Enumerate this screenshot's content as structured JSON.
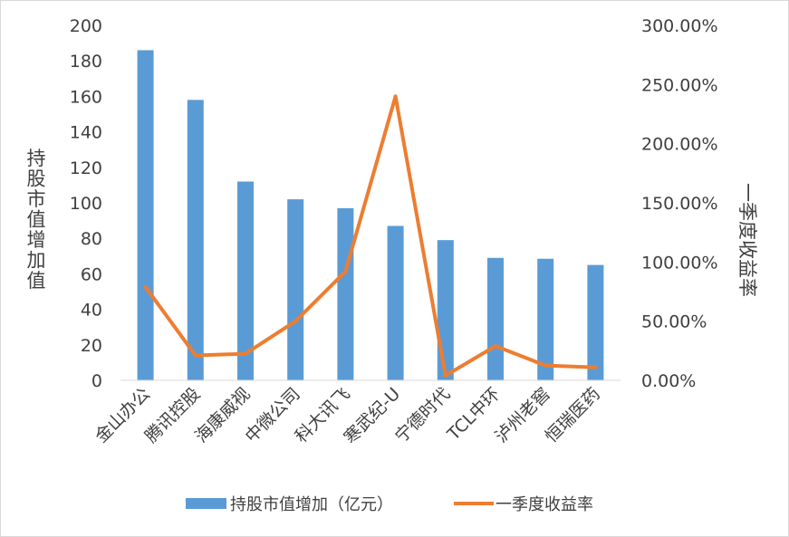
{
  "chart_data": {
    "type": "bar",
    "categories": [
      "金山办公",
      "腾讯控股",
      "海康威视",
      "中微公司",
      "科大讯飞",
      "寒武纪-U",
      "宁德时代",
      "TCL中环",
      "泸州老窖",
      "恒瑞医药"
    ],
    "series": [
      {
        "name": "持股市值增加（亿元）",
        "type": "bar",
        "axis": "left",
        "color": "#5b9bd5",
        "values": [
          186,
          158,
          112,
          102,
          97,
          87,
          79,
          69,
          68.5,
          65
        ]
      },
      {
        "name": "一季度收益率",
        "type": "line",
        "axis": "right",
        "color": "#ed7d31",
        "values": [
          0.79,
          0.21,
          0.225,
          0.5,
          0.92,
          2.4,
          0.04,
          0.29,
          0.125,
          0.11
        ]
      }
    ],
    "ylabel": "持股市值增加值",
    "y2label": "一季度收益率",
    "ylim": [
      0,
      200
    ],
    "y2lim": [
      0,
      3
    ],
    "yticks": [
      "0",
      "20",
      "40",
      "60",
      "80",
      "100",
      "120",
      "140",
      "160",
      "180",
      "200"
    ],
    "y2ticks": [
      "0.00%",
      "50.00%",
      "100.00%",
      "150.00%",
      "200.00%",
      "250.00%",
      "300.00%"
    ],
    "grid": false,
    "legend": "bottom"
  }
}
